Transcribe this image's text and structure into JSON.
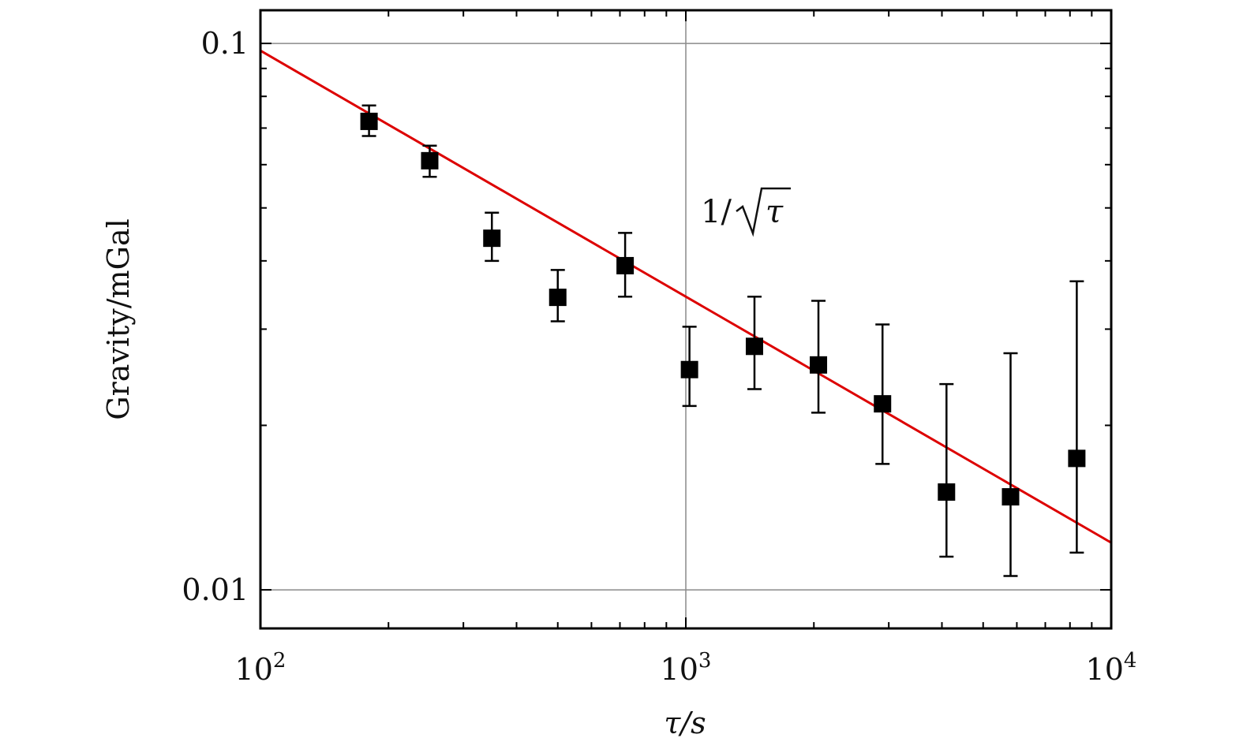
{
  "chart_data": {
    "type": "scatter",
    "title": "",
    "xlabel": "τ/s",
    "ylabel": "Gravity/mGal",
    "x_scale": "log",
    "y_scale": "log",
    "xlim": [
      100,
      10000
    ],
    "ylim": [
      0.0085,
      0.115
    ],
    "grid": "major gridlines at x=10^3 and y=0.01, 0.1",
    "x_tick_labels": [
      "10",
      "10",
      "10"
    ],
    "x_tick_exponents": [
      "2",
      "3",
      "4"
    ],
    "x_tick_values": [
      100,
      1000,
      10000
    ],
    "y_tick_labels": [
      "0.01",
      "0.1"
    ],
    "y_tick_values": [
      0.01,
      0.1
    ],
    "annotation": {
      "lead": "1/",
      "symbol": "τ"
    },
    "series": [
      {
        "type": "errorbar-scatter",
        "color": "#000000",
        "points": [
          {
            "x": 180,
            "y": 0.072,
            "ylo": 0.0677,
            "yhi": 0.077
          },
          {
            "x": 250,
            "y": 0.061,
            "ylo": 0.057,
            "yhi": 0.065
          },
          {
            "x": 350,
            "y": 0.044,
            "ylo": 0.04,
            "yhi": 0.049
          },
          {
            "x": 500,
            "y": 0.0343,
            "ylo": 0.031,
            "yhi": 0.0385
          },
          {
            "x": 720,
            "y": 0.0392,
            "ylo": 0.0344,
            "yhi": 0.045
          },
          {
            "x": 1020,
            "y": 0.0253,
            "ylo": 0.0217,
            "yhi": 0.0303
          },
          {
            "x": 1450,
            "y": 0.0279,
            "ylo": 0.0233,
            "yhi": 0.0344
          },
          {
            "x": 2050,
            "y": 0.0258,
            "ylo": 0.0211,
            "yhi": 0.0338
          },
          {
            "x": 2900,
            "y": 0.0219,
            "ylo": 0.017,
            "yhi": 0.0306
          },
          {
            "x": 4100,
            "y": 0.0151,
            "ylo": 0.0115,
            "yhi": 0.0238
          },
          {
            "x": 5800,
            "y": 0.0148,
            "ylo": 0.0106,
            "yhi": 0.0271
          },
          {
            "x": 8300,
            "y": 0.0174,
            "ylo": 0.0117,
            "yhi": 0.0367
          }
        ]
      },
      {
        "type": "line",
        "color": "#dd0000",
        "x": [
          100,
          10000
        ],
        "y": [
          0.097,
          0.0122
        ]
      }
    ]
  }
}
